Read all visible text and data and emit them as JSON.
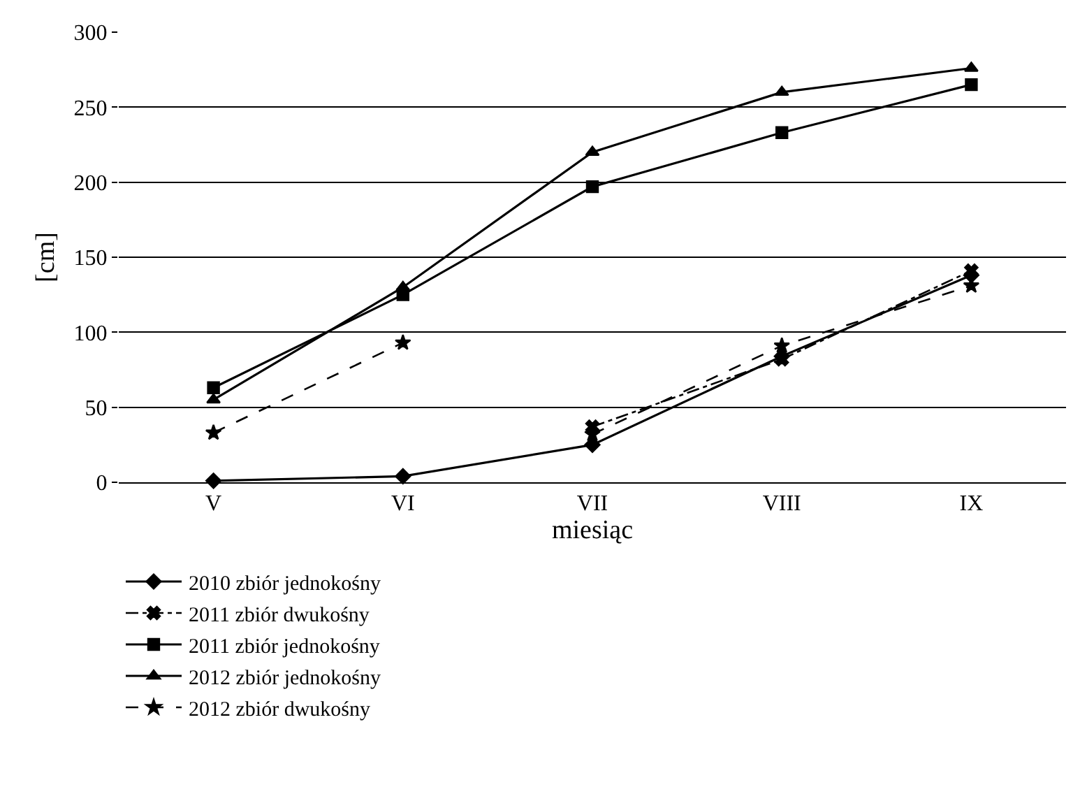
{
  "chart_data": {
    "type": "line",
    "xlabel": "miesiąc",
    "ylabel": "[cm]",
    "categories": [
      "V",
      "VI",
      "VII",
      "VIII",
      "IX"
    ],
    "ylim": [
      0,
      300
    ],
    "yticks": [
      0,
      50,
      100,
      150,
      200,
      250,
      300
    ],
    "grid": "y",
    "legend": "bottom left",
    "series": [
      {
        "name": "2010 zbiór jednokośny",
        "color": "#000000",
        "marker": "diamond",
        "line_style": "solid",
        "values": [
          1,
          4,
          25,
          84,
          138
        ]
      },
      {
        "name": "2011 zbiór dwukośny",
        "color": "#000000",
        "marker": "cross",
        "line_style": "dashdot",
        "values": [
          null,
          null,
          37,
          82,
          141
        ]
      },
      {
        "name": "2011 zbiór jednokośny",
        "color": "#000000",
        "marker": "square",
        "line_style": "solid",
        "values": [
          63,
          125,
          197,
          233,
          265
        ]
      },
      {
        "name": "2012 zbiór jednokośny",
        "color": "#000000",
        "marker": "triangle",
        "line_style": "solid",
        "values": [
          55,
          130,
          220,
          260,
          276
        ]
      },
      {
        "name": "2012 zbiór dwukośny",
        "color": "#000000",
        "marker": "star",
        "line_style": "dashed",
        "values": [
          33,
          93,
          null,
          null,
          null
        ]
      },
      {
        "color": "#000000",
        "marker": "star",
        "line_style": "dashed",
        "values": [
          null,
          null,
          32,
          91,
          131
        ]
      }
    ]
  }
}
